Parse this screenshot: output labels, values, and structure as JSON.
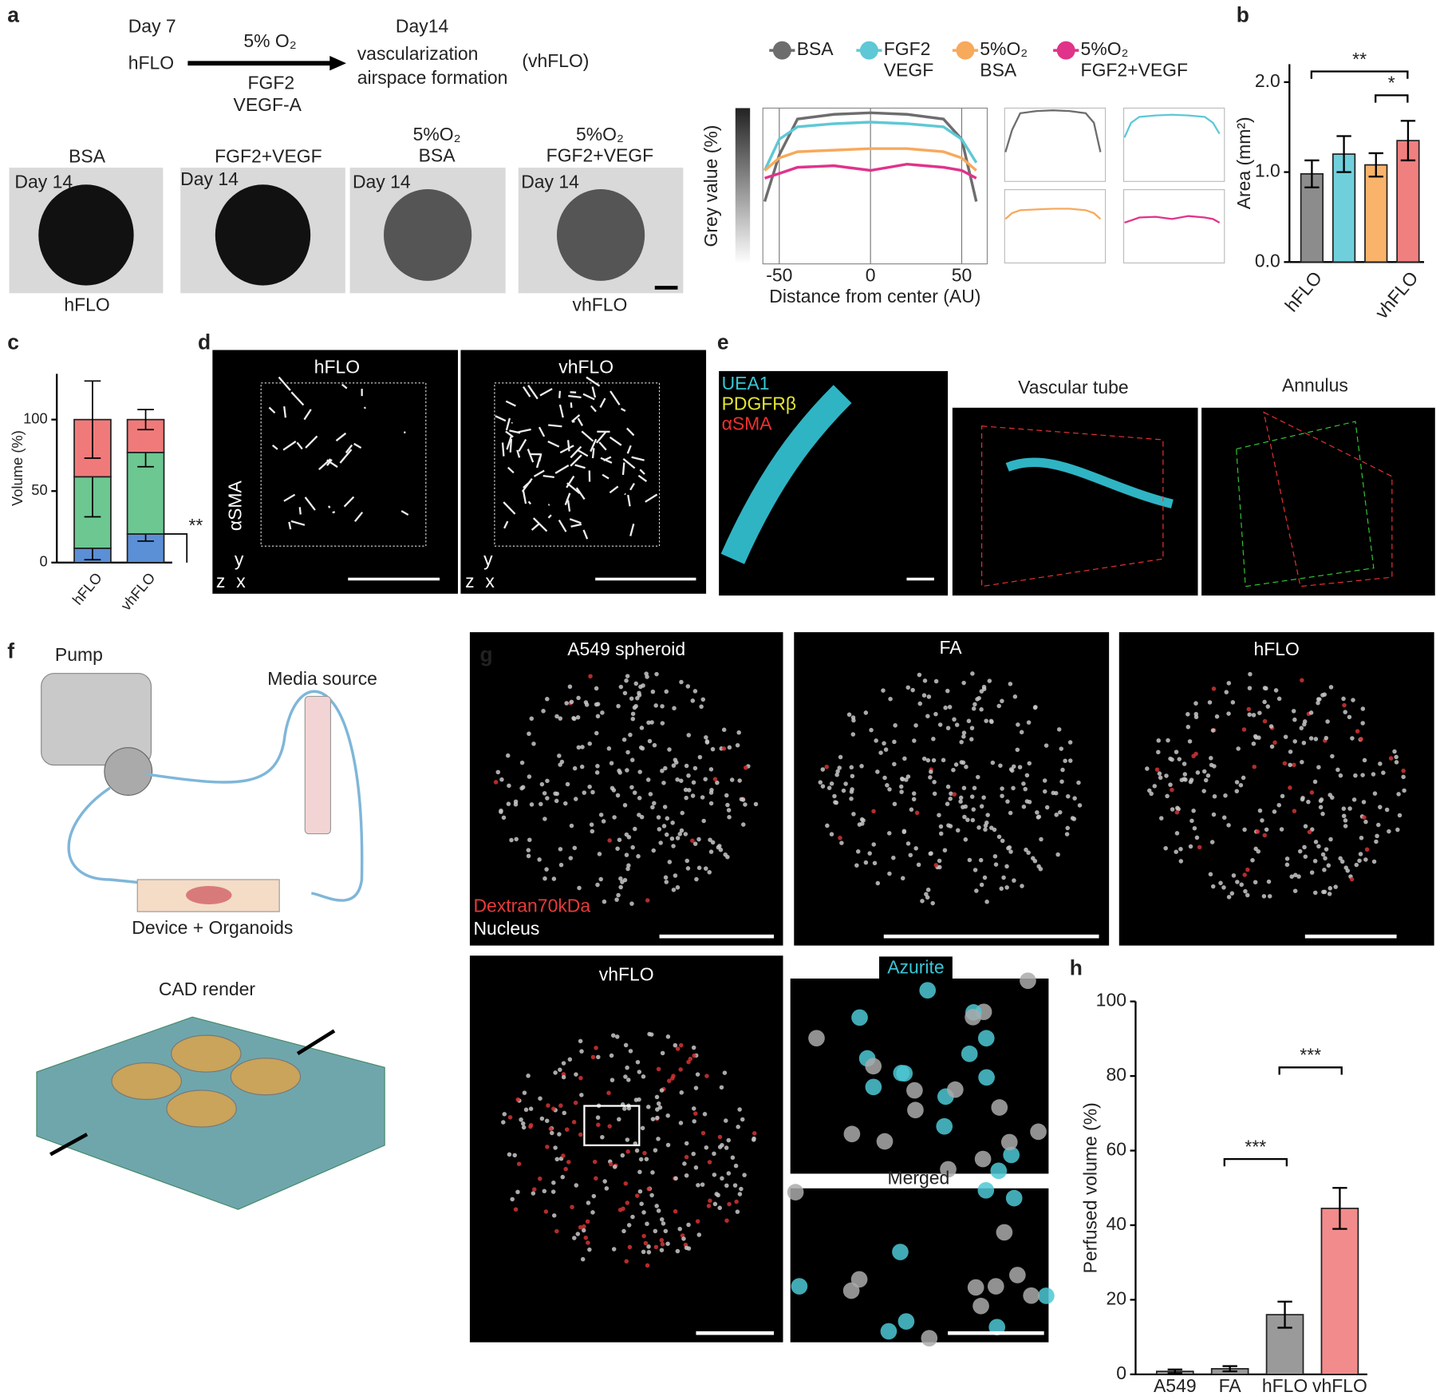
{
  "figure": {
    "panel_labels": [
      "a",
      "b",
      "c",
      "d",
      "e",
      "f",
      "g",
      "h"
    ],
    "a": {
      "timeline": {
        "start_day": "Day 7",
        "condition": "5% O₂",
        "start": "hFLO",
        "factors": [
          "FGF2",
          "VEGF-A"
        ],
        "end_day": "Day14",
        "outcome": [
          "vascularization",
          "airspace formation"
        ],
        "end": "(vhFLO)"
      },
      "images": [
        {
          "title": "BSA",
          "day": "Day 14",
          "caption": "hFLO"
        },
        {
          "title": "FGF2+VEGF",
          "day": "Day 14"
        },
        {
          "title": "5%O₂ BSA",
          "day": "Day 14"
        },
        {
          "title": "5%O₂ FGF2+VEGF",
          "day": "Day 14",
          "caption": "vhFLO"
        }
      ]
    },
    "d": {
      "titles": [
        "hFLO",
        "vhFLO"
      ],
      "stain": "αSMA",
      "axes": [
        "y",
        "z",
        "x"
      ]
    },
    "e": {
      "stains": [
        "UEA1",
        "PDGFRβ",
        "αSMA"
      ],
      "views": [
        "Vascular tube",
        "Annulus"
      ]
    },
    "f": {
      "labels": [
        "Pump",
        "Media source",
        "Device + Organoids",
        "CAD render"
      ]
    },
    "g": {
      "titles": [
        "A549 spheroid",
        "FA",
        "hFLO",
        "vhFLO"
      ],
      "legend": [
        "Dextran70kDa",
        "Nucleus"
      ],
      "insets": [
        "Azurite",
        "Merged"
      ]
    }
  },
  "chart_data": [
    {
      "type": "line",
      "x_label": "Distance from center (AU)",
      "y_label": "Grey value (%)",
      "x": [
        -58,
        -50,
        -40,
        -20,
        0,
        20,
        40,
        50,
        58
      ],
      "xlim": [
        -59,
        64
      ],
      "xticks": [
        -50,
        0,
        50
      ],
      "ylim": [
        0,
        100
      ],
      "series": [
        {
          "name": "BSA",
          "color": "#6d6d6d",
          "values": [
            40,
            70,
            93,
            96,
            97,
            96,
            93,
            80,
            40
          ]
        },
        {
          "name": "FGF2 VEGF",
          "color": "#5ec8d6",
          "values": [
            60,
            80,
            88,
            90,
            91,
            90,
            88,
            80,
            65
          ]
        },
        {
          "name": "5%O₂ BSA",
          "color": "#f7a95c",
          "values": [
            60,
            68,
            72,
            73,
            74,
            74,
            72,
            68,
            60
          ]
        },
        {
          "name": "5%O₂ FGF2+VEGF",
          "color": "#e0338a",
          "values": [
            55,
            58,
            62,
            63,
            60,
            64,
            62,
            60,
            55
          ]
        }
      ]
    },
    {
      "type": "bar",
      "y_label": "Area (mm²)",
      "categories": [
        "hFLO",
        null,
        null,
        "vhFLO"
      ],
      "values": [
        0.98,
        1.2,
        1.08,
        1.35
      ],
      "errors": [
        0.15,
        0.2,
        0.13,
        0.22
      ],
      "colors": [
        "#8c8c8c",
        "#6fd0dc",
        "#f9b36b",
        "#f08080"
      ],
      "ylim": [
        0,
        2.2
      ],
      "yticks": [
        {
          "value": 0,
          "label": "0.0"
        },
        {
          "value": 1,
          "label": "1.0"
        },
        {
          "value": 2,
          "label": "2.0"
        }
      ],
      "annotations": [
        "**",
        "*"
      ]
    },
    {
      "type": "stacked_bar",
      "y_label": "Volume (%)",
      "categories": [
        "hFLO",
        "vhFLO"
      ],
      "ylim": [
        0,
        132
      ],
      "yticks": [
        0,
        50,
        100
      ],
      "series": [
        {
          "color": "#5b8fd6",
          "values": [
            10,
            20
          ],
          "errors": [
            8,
            5
          ]
        },
        {
          "color": "#6cc791",
          "values": [
            50,
            57
          ],
          "errors": [
            28,
            10
          ]
        },
        {
          "color": "#f07a7a",
          "values": [
            40,
            23
          ],
          "errors": [
            27,
            7
          ]
        }
      ],
      "annotations": [
        "**"
      ]
    },
    {
      "type": "bar",
      "y_label": "Perfused volume (%)",
      "categories": [
        "A549",
        "FA",
        "hFLO",
        "vhFLO"
      ],
      "values": [
        0.8,
        1.5,
        16,
        44.5
      ],
      "errors": [
        0.5,
        0.7,
        3.5,
        5.5
      ],
      "colors": [
        "#9a9a9a",
        "#9a9a9a",
        "#9a9a9a",
        "#f28b8b"
      ],
      "ylim": [
        0,
        100
      ],
      "yticks": [
        0,
        20,
        40,
        60,
        80,
        100
      ],
      "annotations": [
        "***",
        "***"
      ]
    }
  ]
}
